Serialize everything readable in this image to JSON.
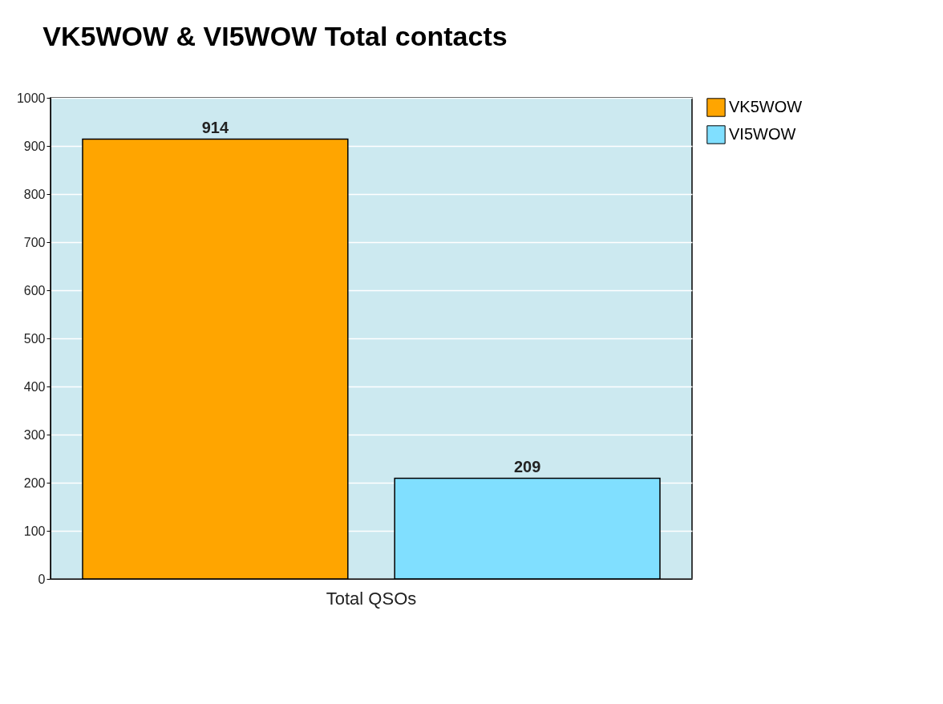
{
  "chart_data": {
    "type": "bar",
    "title": "VK5WOW & VI5WOW Total contacts",
    "categories": [
      "Total QSOs"
    ],
    "series": [
      {
        "name": "VK5WOW",
        "color": "#ffa500",
        "values": [
          914
        ]
      },
      {
        "name": "VI5WOW",
        "color": "#80dfff",
        "values": [
          209
        ]
      }
    ],
    "ylim": [
      0,
      1000
    ],
    "yticks": [
      0,
      100,
      200,
      300,
      400,
      500,
      600,
      700,
      800,
      900,
      1000
    ],
    "grid": "y",
    "legend": "right",
    "data_labels": true
  }
}
